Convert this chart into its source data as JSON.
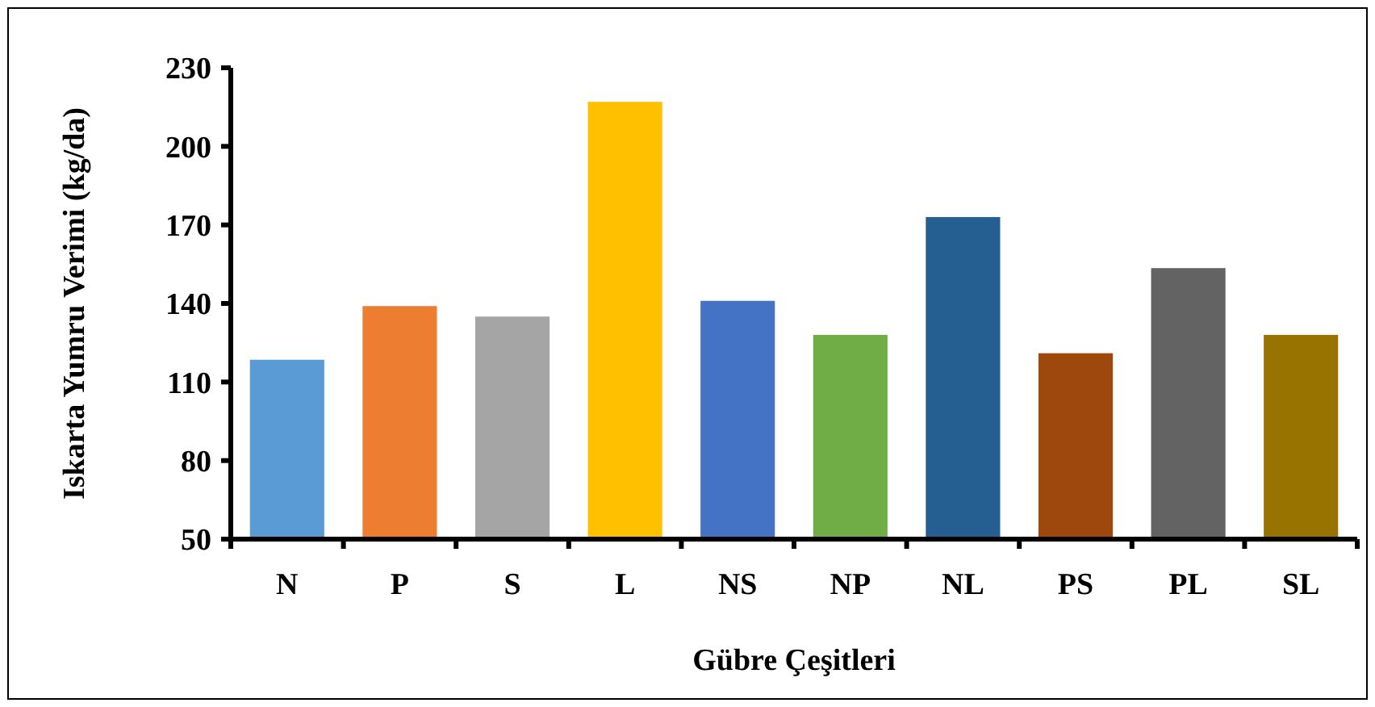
{
  "chart_data": {
    "type": "bar",
    "xlabel": "Gübre Çeşitleri",
    "ylabel": "Iskarta Yumru Verimi (kg/da)",
    "categories": [
      "N",
      "P",
      "S",
      "L",
      "NS",
      "NP",
      "NL",
      "PS",
      "PL",
      "SL"
    ],
    "values": [
      118.5,
      139,
      135,
      217,
      141,
      128,
      173,
      121,
      153.5,
      128
    ],
    "colors": [
      "#5b9bd5",
      "#ed7d31",
      "#a5a5a5",
      "#ffc000",
      "#4472c4",
      "#70ad47",
      "#255e91",
      "#9e480e",
      "#636363",
      "#997300"
    ],
    "ylim": [
      50,
      230
    ],
    "yticks": [
      50,
      80,
      110,
      140,
      170,
      200,
      230
    ],
    "grid": false
  }
}
